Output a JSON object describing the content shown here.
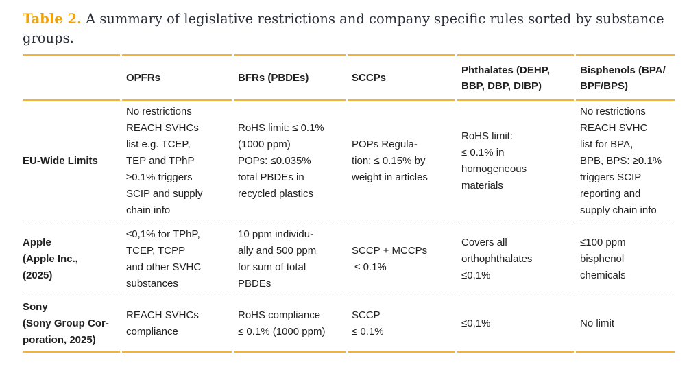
{
  "caption": {
    "label": "Table 2.",
    "text": " A summary of legislative restrictions and company specific rules sorted by substance groups."
  },
  "colors": {
    "accent_caption_label": "#f0a30a",
    "accent_rule": "#f5b335",
    "body_text": "#212121",
    "caption_text": "#2a2f3a",
    "row_separator": "#9e9e9e"
  },
  "table": {
    "columns": [
      "",
      "OPFRs",
      "BFRs (PBDEs)",
      "SCCPs",
      "Phthalates (DEHP,\nBBP, DBP, DIBP)",
      "Bisphenols (BPA/\nBPF/BPS)"
    ],
    "rows": [
      {
        "header": "EU-Wide Limits",
        "cells": [
          "No restrictions\nREACH SVHCs\nlist e.g. TCEP,\nTEP and TPhP\n≥0.1% triggers\nSCIP and supply\nchain info",
          "RoHS limit: ≤ 0.1%\n(1000 ppm)\nPOPs: ≤0.035%\ntotal PBDEs in\nrecycled plastics",
          "POPs Regula-\ntion: ≤ 0.15% by\nweight in articles",
          "RoHS limit:\n≤ 0.1% in\nhomogeneous\nmaterials",
          "No restrictions\nREACH SVHC\nlist for BPA,\nBPB, BPS: ≥0.1%\ntriggers SCIP\nreporting and\nsupply chain info"
        ]
      },
      {
        "header": "Apple\n(Apple Inc.,\n(2025)",
        "cells": [
          "≤0,1% for TPhP,\nTCEP, TCPP\nand other SVHC\nsubstances",
          "10 ppm individu-\nally and 500 ppm\nfor sum of total\nPBDEs",
          "SCCP + MCCPs\n ≤ 0.1%",
          "Covers all\northophthalates\n≤0,1%",
          "≤100 ppm\nbisphenol\nchemicals"
        ]
      },
      {
        "header": "Sony\n(Sony Group Cor-\nporation, 2025)",
        "cells": [
          "REACH SVHCs\ncompliance",
          "RoHS compliance\n≤ 0.1% (1000 ppm)",
          "SCCP\n≤ 0.1%",
          "≤0,1%",
          "No limit"
        ]
      }
    ]
  }
}
